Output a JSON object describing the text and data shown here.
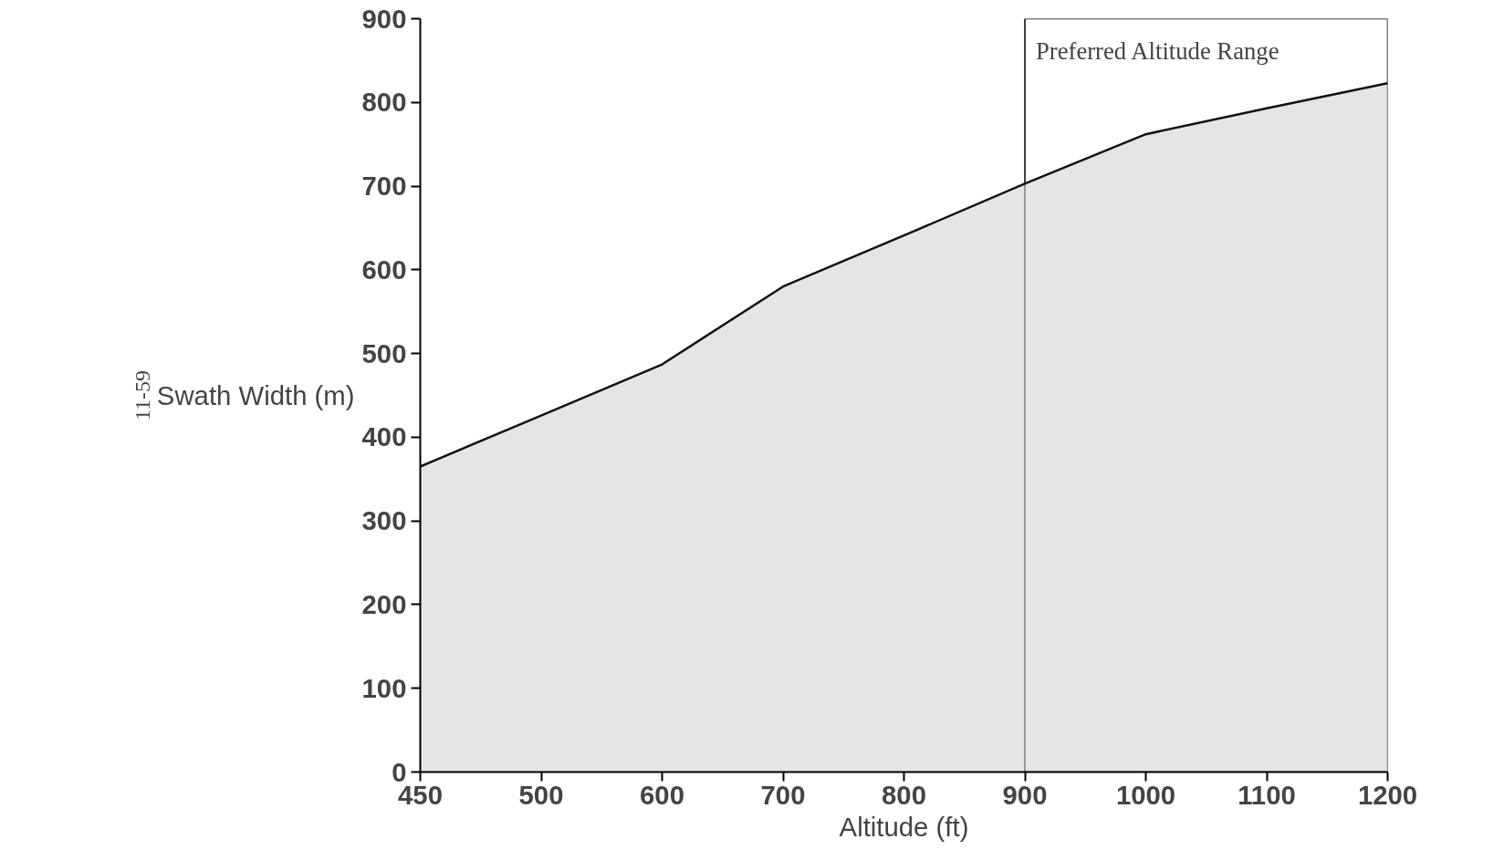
{
  "chart_data": {
    "type": "area",
    "xlabel": "Altitude (ft)",
    "ylabel": "Swath Width (m)",
    "categories": [
      "450",
      "500",
      "600",
      "700",
      "800",
      "900",
      "1000",
      "1100",
      "1200"
    ],
    "series": [
      {
        "color": "#d4d4d4",
        "values": [
          365,
          426,
          487,
          580,
          641,
          703,
          762,
          793,
          823
        ]
      }
    ],
    "ylim": [
      0,
      900
    ],
    "yticks": [
      0,
      100,
      200,
      300,
      400,
      500,
      600,
      700,
      800,
      900
    ],
    "grid": false,
    "bands": [
      {
        "axis": "x",
        "from": "900",
        "to": "1200",
        "label": "Preferred Altitude Range"
      }
    ],
    "annotations": [
      "11-59"
    ]
  }
}
